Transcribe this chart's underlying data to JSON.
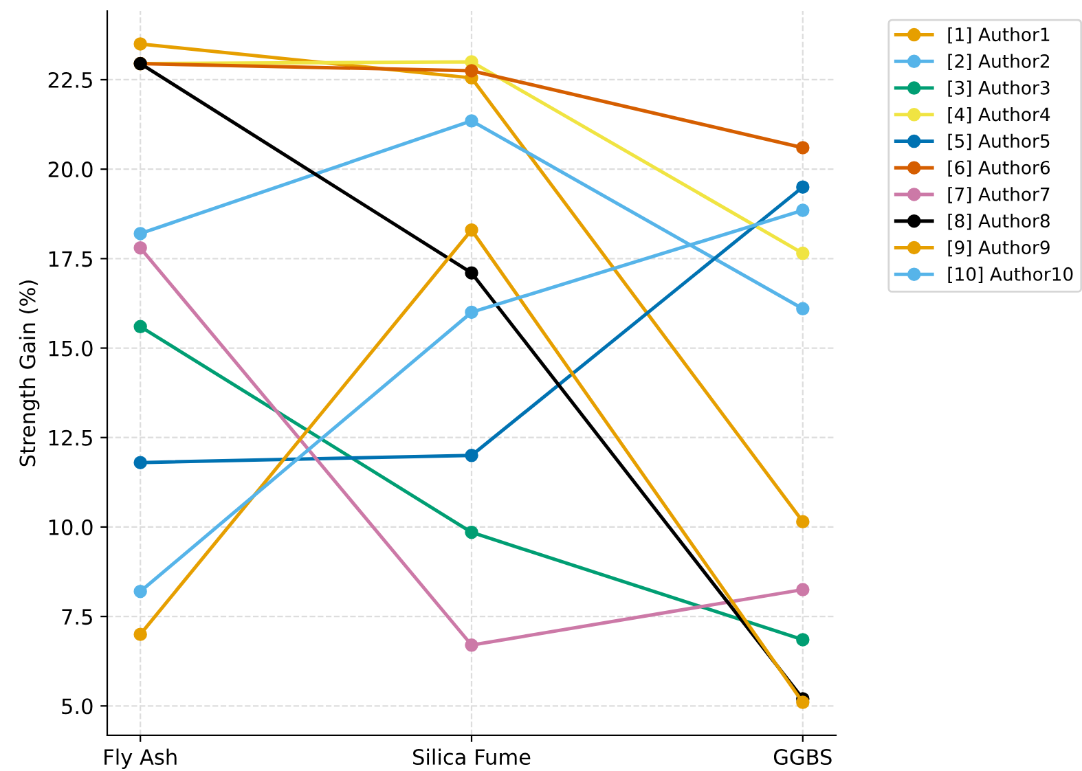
{
  "chart_data": {
    "type": "line",
    "ylabel": "Strength Gain (%)",
    "categories": [
      "Fly Ash",
      "Silica Fume",
      "GGBS"
    ],
    "series": [
      {
        "name": "[1] Author1",
        "color": "#e69f00",
        "values": [
          23.5,
          22.55,
          10.15
        ]
      },
      {
        "name": "[2] Author2",
        "color": "#56b4e9",
        "values": [
          18.2,
          21.35,
          16.1
        ]
      },
      {
        "name": "[3] Author3",
        "color": "#009e73",
        "values": [
          15.6,
          9.85,
          6.85
        ]
      },
      {
        "name": "[4] Author4",
        "color": "#f0e442",
        "values": [
          22.95,
          23.0,
          17.65
        ]
      },
      {
        "name": "[5] Author5",
        "color": "#0072b2",
        "values": [
          11.8,
          12.0,
          19.5
        ]
      },
      {
        "name": "[6] Author6",
        "color": "#d55e00",
        "values": [
          22.95,
          22.75,
          20.6
        ]
      },
      {
        "name": "[7] Author7",
        "color": "#cc79a7",
        "values": [
          17.8,
          6.7,
          8.25
        ]
      },
      {
        "name": "[8] Author8",
        "color": "#000000",
        "values": [
          22.95,
          17.1,
          5.2
        ]
      },
      {
        "name": "[9] Author9",
        "color": "#e69f00",
        "values": [
          7.0,
          18.3,
          5.1
        ]
      },
      {
        "name": "[10] Author10",
        "color": "#56b4e9",
        "values": [
          8.2,
          16.0,
          18.85
        ]
      }
    ],
    "ylim": [
      4.18,
      24.42
    ],
    "yticks": [
      {
        "value": 5,
        "label": "5.0"
      },
      {
        "value": 7.5,
        "label": "7.5"
      },
      {
        "value": 10,
        "label": "10.0"
      },
      {
        "value": 12.5,
        "label": "12.5"
      },
      {
        "value": 15,
        "label": "15.0"
      },
      {
        "value": 17.5,
        "label": "17.5"
      },
      {
        "value": 20,
        "label": "20.0"
      },
      {
        "value": 22.5,
        "label": "22.5"
      }
    ],
    "grid": true,
    "legend": "top right",
    "marker": "circle",
    "line_style": "solid"
  }
}
